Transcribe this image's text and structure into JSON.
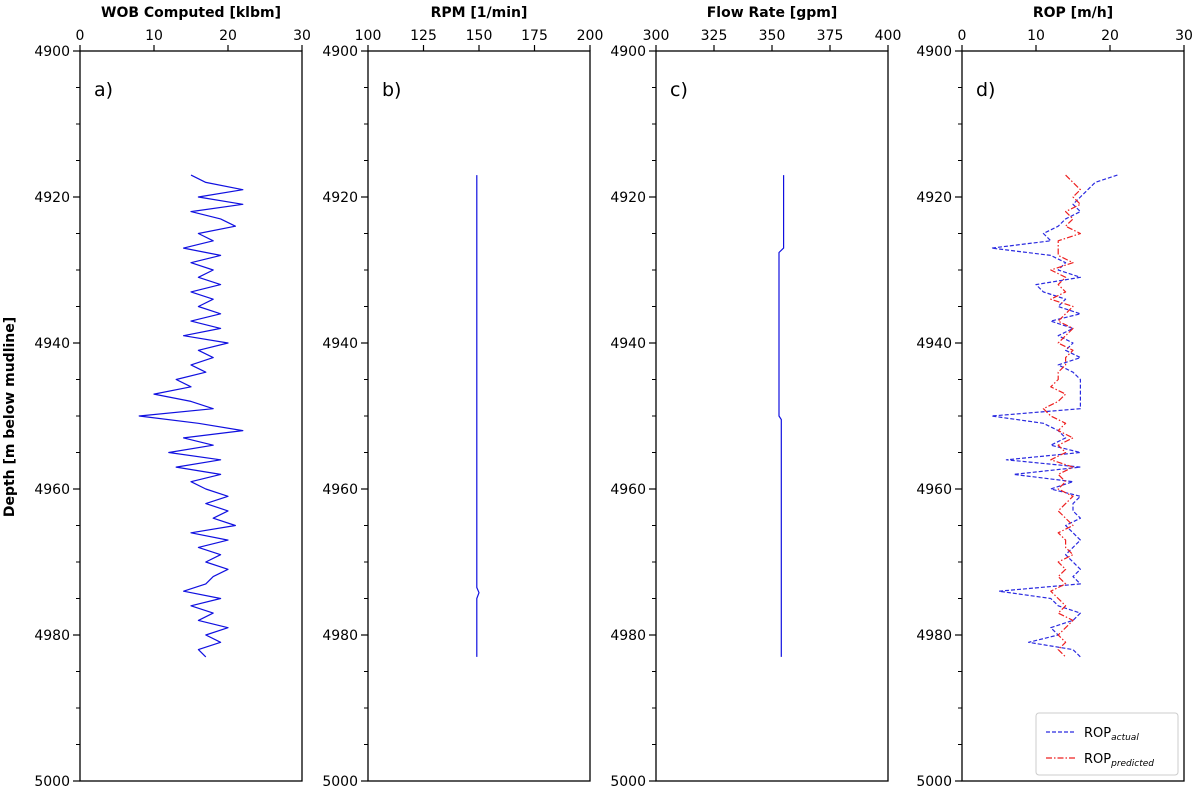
{
  "chart_data": [
    {
      "type": "line",
      "title": "WOB Computed [klbm]",
      "panel_label": "a)",
      "ylabel": "Depth [m below mudline]",
      "xlim": [
        0,
        30
      ],
      "ylim": [
        4900,
        5000
      ],
      "y_inverted": true,
      "xticks": [
        0,
        10,
        20,
        30
      ],
      "yticks": [
        4900,
        4920,
        4940,
        4960,
        4980,
        5000
      ],
      "series": [
        {
          "color": "#1010e0",
          "style": "solid",
          "depth": [
            4917,
            4918,
            4919,
            4920,
            4921,
            4922,
            4923,
            4924,
            4925,
            4926,
            4927,
            4928,
            4929,
            4930,
            4931,
            4932,
            4933,
            4934,
            4935,
            4936,
            4937,
            4938,
            4939,
            4940,
            4941,
            4942,
            4943,
            4944,
            4945,
            4946,
            4947,
            4948,
            4949,
            4950,
            4951,
            4952,
            4953,
            4954,
            4955,
            4956,
            4957,
            4958,
            4959,
            4960,
            4961,
            4962,
            4963,
            4964,
            4965,
            4966,
            4967,
            4968,
            4969,
            4970,
            4971,
            4972,
            4973,
            4974,
            4975,
            4976,
            4977,
            4978,
            4979,
            4980,
            4981,
            4982,
            4983
          ],
          "values": [
            15,
            17,
            22,
            16,
            22,
            15,
            19,
            21,
            16,
            18,
            14,
            19,
            15,
            18,
            16,
            19,
            15,
            18,
            16,
            19,
            15,
            19,
            14,
            20,
            16,
            18,
            15,
            17,
            13,
            15,
            10,
            15,
            18,
            8,
            16,
            22,
            14,
            18,
            12,
            19,
            13,
            19,
            15,
            17,
            20,
            17,
            20,
            18,
            21,
            15,
            20,
            16,
            19,
            17,
            20,
            18,
            17,
            14,
            19,
            15,
            18,
            16,
            20,
            17,
            19,
            16,
            17
          ]
        }
      ]
    },
    {
      "type": "line",
      "title": "RPM [1/min]",
      "panel_label": "b)",
      "xlim": [
        100,
        200
      ],
      "ylim": [
        4900,
        5000
      ],
      "y_inverted": true,
      "xticks": [
        100,
        125,
        150,
        175,
        200
      ],
      "yticks": [
        4900,
        4920,
        4940,
        4960,
        4980,
        5000
      ],
      "series": [
        {
          "color": "#1010e0",
          "style": "solid",
          "depth": [
            4917,
            4973.5,
            4974.2,
            4975,
            4983
          ],
          "values": [
            149,
            149,
            150,
            149,
            149
          ]
        }
      ]
    },
    {
      "type": "line",
      "title": "Flow Rate [gpm]",
      "panel_label": "c)",
      "xlim": [
        300,
        400
      ],
      "ylim": [
        4900,
        5000
      ],
      "y_inverted": true,
      "xticks": [
        300,
        325,
        350,
        375,
        400
      ],
      "yticks": [
        4900,
        4920,
        4940,
        4960,
        4980,
        5000
      ],
      "series": [
        {
          "color": "#1010e0",
          "style": "solid",
          "depth": [
            4917,
            4927,
            4927.6,
            4950,
            4950.5,
            4983
          ],
          "values": [
            355,
            355,
            353,
            353,
            354,
            354
          ]
        }
      ]
    },
    {
      "type": "line",
      "title": "ROP [m/h]",
      "panel_label": "d)",
      "xlim": [
        0,
        30
      ],
      "ylim": [
        4900,
        5000
      ],
      "y_inverted": true,
      "xticks": [
        0,
        10,
        20,
        30
      ],
      "yticks": [
        4900,
        4920,
        4940,
        4960,
        4980,
        5000
      ],
      "legend": "bottom-right",
      "series": [
        {
          "name": "ROP",
          "name_sub": "actual",
          "color": "#2a2ae0",
          "style": "dashed",
          "depth": [
            4917,
            4918,
            4919,
            4920,
            4921,
            4922,
            4923,
            4924,
            4925,
            4926,
            4927,
            4928,
            4929,
            4930,
            4931,
            4932,
            4933,
            4934,
            4935,
            4936,
            4937,
            4938,
            4939,
            4940,
            4941,
            4942,
            4943,
            4944,
            4945,
            4946,
            4947,
            4948,
            4949,
            4950,
            4951,
            4952,
            4953,
            4954,
            4955,
            4956,
            4957,
            4958,
            4959,
            4960,
            4961,
            4962,
            4963,
            4964,
            4965,
            4966,
            4967,
            4968,
            4969,
            4970,
            4971,
            4972,
            4973,
            4974,
            4975,
            4976,
            4977,
            4978,
            4979,
            4980,
            4981,
            4982,
            4983
          ],
          "values": [
            21,
            18,
            17,
            16,
            15,
            16,
            14,
            13,
            11,
            12,
            4,
            12,
            14,
            13,
            16,
            10,
            11,
            14,
            13,
            16,
            12,
            15,
            13,
            15,
            14,
            16,
            13,
            15,
            16,
            16,
            16,
            16,
            16,
            4,
            11,
            13,
            14,
            12,
            16,
            6,
            16,
            7,
            15,
            12,
            16,
            15,
            15,
            16,
            14,
            15,
            16,
            15,
            14,
            15,
            16,
            15,
            16,
            5,
            12,
            13,
            16,
            15,
            12,
            13,
            9,
            15,
            16
          ]
        },
        {
          "name": "ROP",
          "name_sub": "predicted",
          "color": "#ee2020",
          "style": "dashdot",
          "depth": [
            4917,
            4918,
            4919,
            4920,
            4921,
            4922,
            4923,
            4924,
            4925,
            4926,
            4927,
            4928,
            4929,
            4930,
            4931,
            4932,
            4933,
            4934,
            4935,
            4936,
            4937,
            4938,
            4939,
            4940,
            4941,
            4942,
            4943,
            4944,
            4945,
            4946,
            4947,
            4948,
            4949,
            4950,
            4951,
            4952,
            4953,
            4954,
            4955,
            4956,
            4957,
            4958,
            4959,
            4960,
            4961,
            4962,
            4963,
            4964,
            4965,
            4966,
            4967,
            4968,
            4969,
            4970,
            4971,
            4972,
            4973,
            4974,
            4975,
            4976,
            4977,
            4978,
            4979,
            4980,
            4981,
            4982,
            4983
          ],
          "values": [
            14,
            15,
            16,
            15,
            16,
            14,
            15,
            14,
            16,
            13,
            13,
            13,
            15,
            12,
            14,
            13,
            14,
            12,
            15,
            14,
            13,
            15,
            14,
            13,
            15,
            14,
            14,
            13,
            13,
            12,
            14,
            13,
            11,
            12,
            14,
            13,
            15,
            13,
            14,
            12,
            15,
            13,
            14,
            13,
            15,
            14,
            13,
            14,
            15,
            13,
            14,
            14,
            15,
            13,
            14,
            13,
            14,
            12,
            13,
            14,
            13,
            15,
            14,
            13,
            14,
            13,
            14
          ]
        }
      ]
    }
  ]
}
